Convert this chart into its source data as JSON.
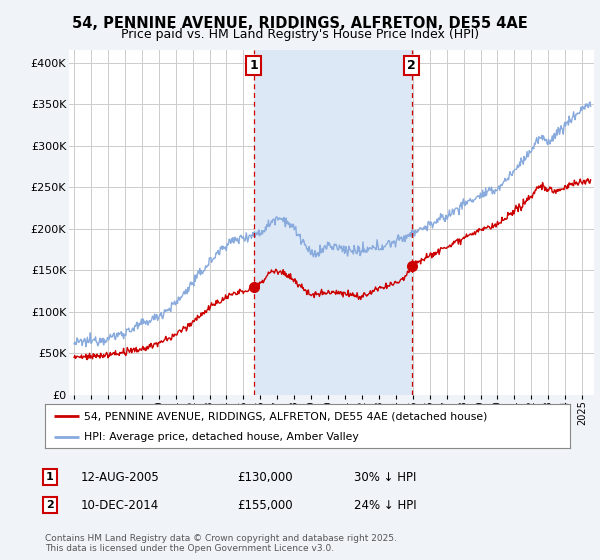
{
  "title": "54, PENNINE AVENUE, RIDDINGS, ALFRETON, DE55 4AE",
  "subtitle": "Price paid vs. HM Land Registry's House Price Index (HPI)",
  "ylabel_ticks": [
    "£0",
    "£50K",
    "£100K",
    "£150K",
    "£200K",
    "£250K",
    "£300K",
    "£350K",
    "£400K"
  ],
  "ytick_values": [
    0,
    50000,
    100000,
    150000,
    200000,
    250000,
    300000,
    350000,
    400000
  ],
  "ylim": [
    0,
    415000
  ],
  "xlim_start": 1994.7,
  "xlim_end": 2025.7,
  "sale1": {
    "year": 2005.617,
    "price": 130000,
    "label": "1"
  },
  "sale2": {
    "year": 2014.94,
    "price": 155000,
    "label": "2"
  },
  "legend_line1": "54, PENNINE AVENUE, RIDDINGS, ALFRETON, DE55 4AE (detached house)",
  "legend_line2": "HPI: Average price, detached house, Amber Valley",
  "footer": "Contains HM Land Registry data © Crown copyright and database right 2025.\nThis data is licensed under the Open Government Licence v3.0.",
  "line_color_red": "#cc0000",
  "line_color_blue": "#88aadd",
  "shade_color": "#dce8f5",
  "background_color": "#f0f4f8",
  "plot_bg": "#ffffff",
  "grid_color": "#cccccc",
  "dashed_color": "#cc0000"
}
